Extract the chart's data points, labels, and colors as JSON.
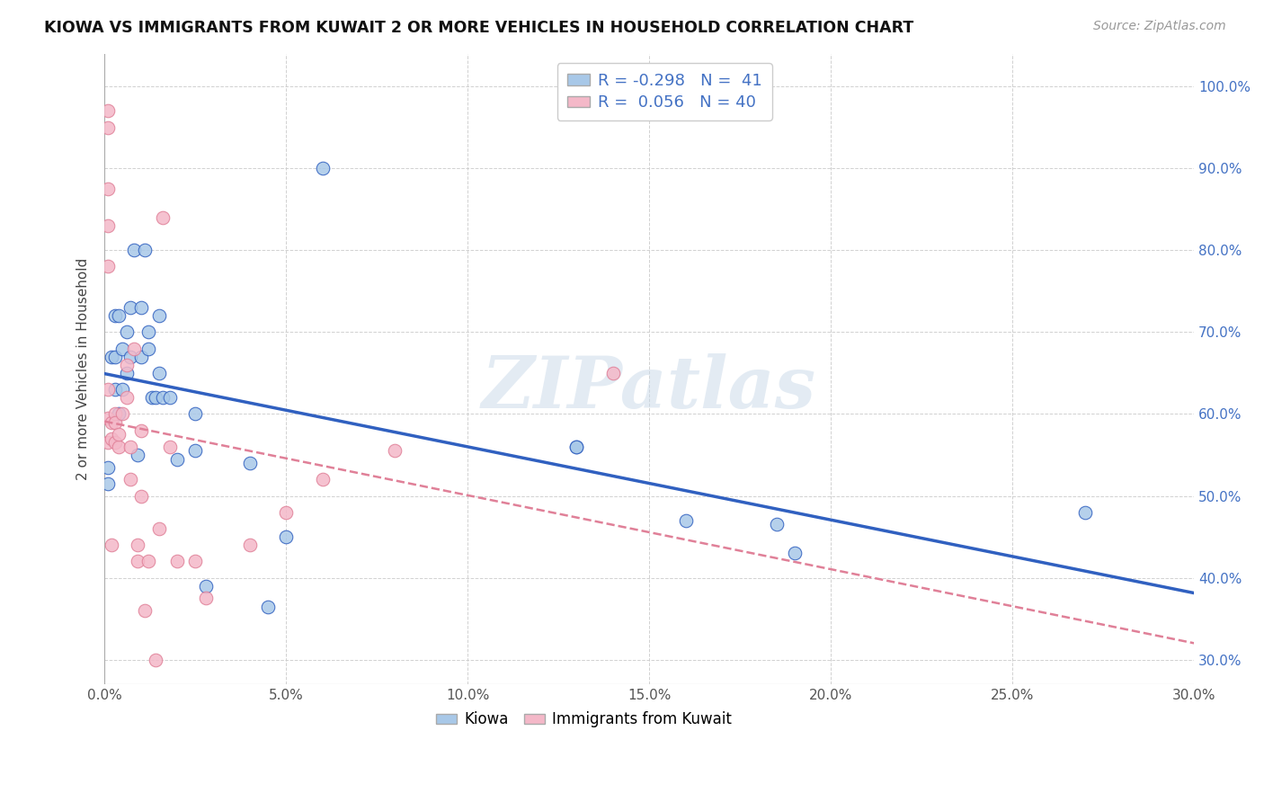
{
  "title": "KIOWA VS IMMIGRANTS FROM KUWAIT 2 OR MORE VEHICLES IN HOUSEHOLD CORRELATION CHART",
  "source": "Source: ZipAtlas.com",
  "xlim": [
    0.0,
    0.3
  ],
  "ylim": [
    0.27,
    1.04
  ],
  "ylabel": "2 or more Vehicles in Household",
  "kiowa_color": "#a8c8e8",
  "kuwait_color": "#f4b8c8",
  "kiowa_line_color": "#3060c0",
  "kuwait_line_color": "#e08098",
  "watermark": "ZIPatlas",
  "kiowa_points_x": [
    0.001,
    0.001,
    0.002,
    0.003,
    0.003,
    0.003,
    0.004,
    0.004,
    0.005,
    0.005,
    0.006,
    0.006,
    0.007,
    0.007,
    0.008,
    0.009,
    0.01,
    0.01,
    0.011,
    0.012,
    0.012,
    0.013,
    0.014,
    0.015,
    0.015,
    0.016,
    0.018,
    0.02,
    0.025,
    0.025,
    0.028,
    0.04,
    0.045,
    0.05,
    0.06,
    0.13,
    0.13,
    0.16,
    0.185,
    0.19,
    0.27
  ],
  "kiowa_points_y": [
    0.515,
    0.535,
    0.67,
    0.63,
    0.67,
    0.72,
    0.6,
    0.72,
    0.63,
    0.68,
    0.65,
    0.7,
    0.67,
    0.73,
    0.8,
    0.55,
    0.67,
    0.73,
    0.8,
    0.68,
    0.7,
    0.62,
    0.62,
    0.65,
    0.72,
    0.62,
    0.62,
    0.545,
    0.555,
    0.6,
    0.39,
    0.54,
    0.365,
    0.45,
    0.9,
    0.56,
    0.56,
    0.47,
    0.465,
    0.43,
    0.48
  ],
  "kuwait_points_x": [
    0.001,
    0.001,
    0.001,
    0.001,
    0.001,
    0.001,
    0.001,
    0.001,
    0.002,
    0.002,
    0.002,
    0.003,
    0.003,
    0.003,
    0.004,
    0.004,
    0.005,
    0.006,
    0.006,
    0.007,
    0.007,
    0.008,
    0.009,
    0.009,
    0.01,
    0.01,
    0.011,
    0.012,
    0.014,
    0.015,
    0.016,
    0.018,
    0.02,
    0.025,
    0.028,
    0.04,
    0.05,
    0.06,
    0.08,
    0.14
  ],
  "kuwait_points_y": [
    0.97,
    0.95,
    0.875,
    0.83,
    0.78,
    0.63,
    0.595,
    0.565,
    0.59,
    0.57,
    0.44,
    0.6,
    0.59,
    0.565,
    0.56,
    0.575,
    0.6,
    0.66,
    0.62,
    0.56,
    0.52,
    0.68,
    0.44,
    0.42,
    0.58,
    0.5,
    0.36,
    0.42,
    0.3,
    0.46,
    0.84,
    0.56,
    0.42,
    0.42,
    0.375,
    0.44,
    0.48,
    0.52,
    0.555,
    0.65
  ],
  "kiowa_R": -0.298,
  "kiowa_N": 41,
  "kuwait_R": 0.056,
  "kuwait_N": 40
}
